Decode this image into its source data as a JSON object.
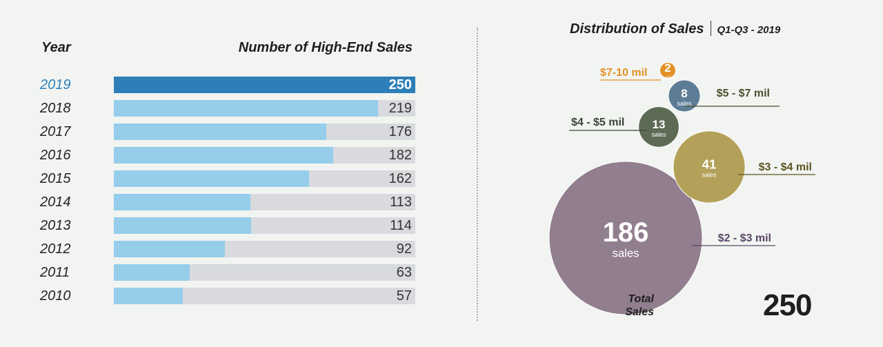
{
  "colors": {
    "highlight_bar": "#2e7fb8",
    "bar": "#95cdea",
    "track": "#d8dade",
    "highlight_year": "#2e7fb8"
  },
  "chart_data": [
    {
      "type": "bar",
      "orientation": "horizontal",
      "xlabel": "Number of High-End Sales",
      "ylabel": "Year",
      "categories": [
        "2019",
        "2018",
        "2017",
        "2016",
        "2015",
        "2014",
        "2013",
        "2012",
        "2011",
        "2010"
      ],
      "values": [
        250,
        219,
        176,
        182,
        162,
        113,
        114,
        92,
        63,
        57
      ],
      "highlight": "2019",
      "xlim": [
        0,
        250
      ],
      "grid": false
    },
    {
      "type": "bubble",
      "title": "Distribution of Sales",
      "subtitle": "Q1-Q3 - 2019",
      "unit_singular": "sale",
      "unit_plural": "sales",
      "categories": [
        "$7-10 mil",
        "$5 - $7 mil",
        "$4 - $5 mil",
        "$3 - $4 mil",
        "$2 - $3 mil"
      ],
      "values": [
        2,
        8,
        13,
        41,
        186
      ],
      "colors": [
        "#e29127",
        "#5d7d97",
        "#5d6b55",
        "#b3a159",
        "#917e8e"
      ],
      "label_colors": [
        "#e29127",
        "#4b4f2c",
        "#384535",
        "#5d5423",
        "#5b4668"
      ],
      "total_label": "Total Sales",
      "total_value": "250"
    }
  ]
}
